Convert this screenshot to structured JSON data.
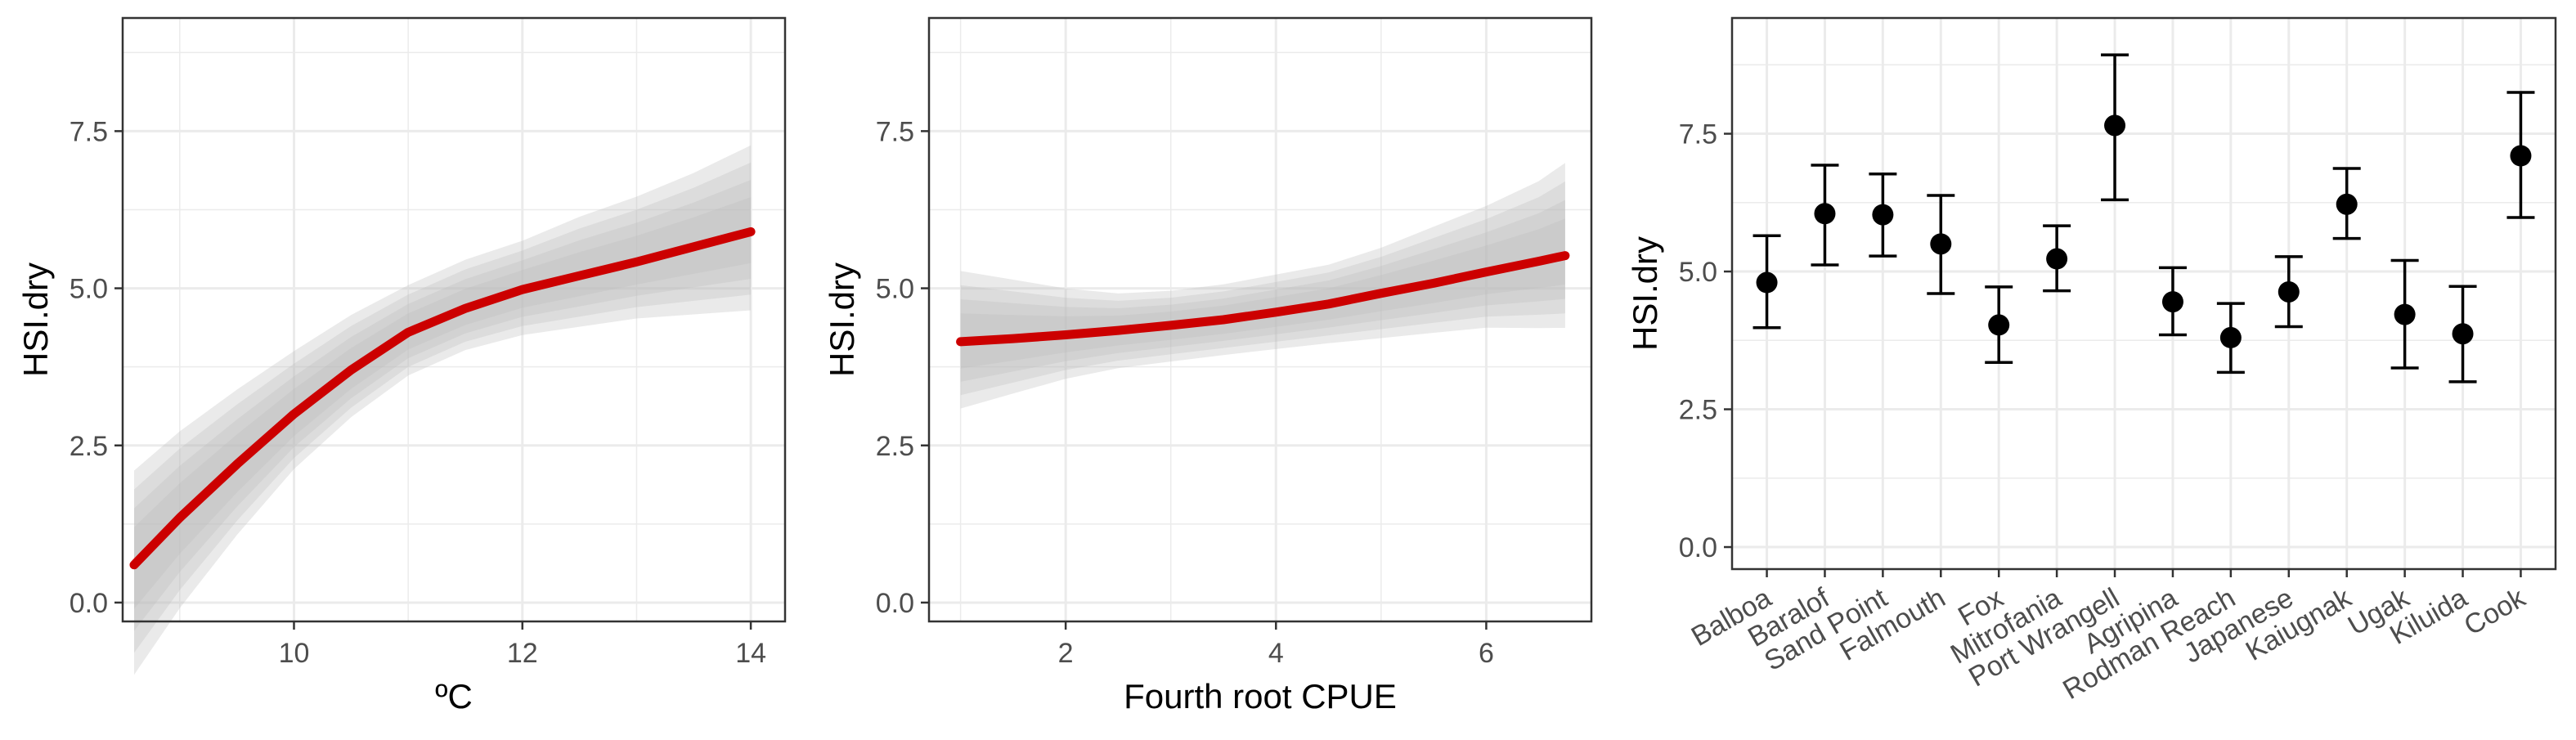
{
  "colors": {
    "curve": "#cc0000",
    "band": "#bdbdbd",
    "points": "#000000",
    "grid": "#ebebeb",
    "panel_border": "#333333"
  },
  "chart_data": [
    {
      "type": "line",
      "xlabel": "ºC",
      "ylabel": "HSI.dry",
      "xlim": [
        8.5,
        14.3
      ],
      "ylim": [
        -0.3,
        9.3
      ],
      "x_ticks": [
        10,
        12,
        14
      ],
      "y_ticks": [
        0.0,
        2.5,
        5.0,
        7.5
      ],
      "x_tick_labels": [
        "10",
        "12",
        "14"
      ],
      "y_tick_labels": [
        "0.0",
        "2.5",
        "5.0",
        "7.5"
      ],
      "grid": true,
      "x": [
        8.6,
        9.0,
        9.5,
        10.0,
        10.5,
        11.0,
        11.5,
        12.0,
        12.5,
        13.0,
        13.5,
        14.0
      ],
      "y": [
        0.6,
        1.35,
        2.2,
        3.0,
        3.7,
        4.3,
        4.68,
        4.98,
        5.2,
        5.42,
        5.66,
        5.9
      ],
      "ci_lower": [
        -0.8,
        0.2,
        1.3,
        2.3,
        3.1,
        3.75,
        4.15,
        4.4,
        4.55,
        4.7,
        4.8,
        4.9
      ],
      "ci_upper": [
        1.8,
        2.45,
        3.15,
        3.8,
        4.4,
        4.9,
        5.3,
        5.6,
        5.95,
        6.25,
        6.6,
        7.0
      ]
    },
    {
      "type": "line",
      "xlabel": "Fourth root CPUE",
      "ylabel": "HSI.dry",
      "xlim": [
        0.7,
        7.0
      ],
      "ylim": [
        -0.3,
        9.3
      ],
      "x_ticks": [
        2,
        4,
        6
      ],
      "y_ticks": [
        0.0,
        2.5,
        5.0,
        7.5
      ],
      "x_tick_labels": [
        "2",
        "4",
        "6"
      ],
      "y_tick_labels": [
        "0.0",
        "2.5",
        "5.0",
        "7.5"
      ],
      "grid": true,
      "x": [
        1.0,
        1.5,
        2.0,
        2.5,
        3.0,
        3.5,
        4.0,
        4.5,
        5.0,
        5.5,
        6.0,
        6.5,
        6.75
      ],
      "y": [
        4.15,
        4.2,
        4.26,
        4.33,
        4.41,
        4.5,
        4.62,
        4.75,
        4.92,
        5.08,
        5.26,
        5.43,
        5.52
      ],
      "ci_lower": [
        3.3,
        3.5,
        3.7,
        3.85,
        3.95,
        4.05,
        4.15,
        4.25,
        4.35,
        4.45,
        4.55,
        4.58,
        4.6
      ],
      "ci_upper": [
        5.05,
        4.95,
        4.85,
        4.8,
        4.85,
        4.95,
        5.1,
        5.25,
        5.5,
        5.8,
        6.1,
        6.45,
        6.7
      ]
    },
    {
      "type": "scatter",
      "xlabel": "",
      "ylabel": "HSI.dry",
      "ylim": [
        -0.4,
        9.6
      ],
      "y_ticks": [
        0.0,
        2.5,
        5.0,
        7.5
      ],
      "y_tick_labels": [
        "0.0",
        "2.5",
        "5.0",
        "7.5"
      ],
      "grid": true,
      "categories": [
        "Balboa",
        "Baralof",
        "Sand Point",
        "Falmouth",
        "Fox",
        "Mitrofania",
        "Port Wrangell",
        "Agripina",
        "Rodman Reach",
        "Japanese",
        "Kaiugnak",
        "Ugak",
        "Kiluida",
        "Cook"
      ],
      "values": [
        4.8,
        6.05,
        6.03,
        5.5,
        4.03,
        5.23,
        7.65,
        4.45,
        3.8,
        4.63,
        6.22,
        4.22,
        3.87,
        7.1
      ],
      "lower": [
        3.98,
        5.12,
        5.28,
        4.6,
        3.35,
        4.65,
        6.3,
        3.85,
        3.17,
        4.0,
        5.6,
        3.25,
        3.0,
        5.98
      ],
      "upper": [
        5.65,
        6.93,
        6.77,
        6.38,
        4.72,
        5.83,
        8.93,
        5.07,
        4.42,
        5.27,
        6.87,
        5.2,
        4.73,
        8.25
      ]
    }
  ]
}
